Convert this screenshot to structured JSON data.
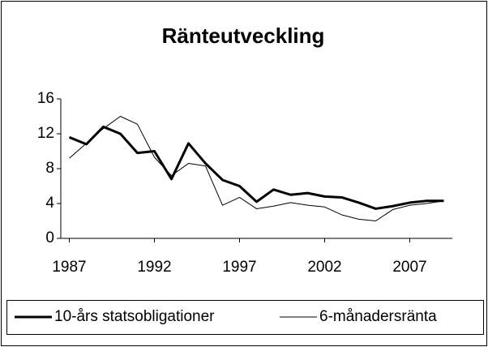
{
  "chart_data": {
    "type": "line",
    "title": "Ränteutveckling",
    "x": [
      1987,
      1988,
      1989,
      1990,
      1991,
      1992,
      1993,
      1994,
      1995,
      1996,
      1997,
      1998,
      1999,
      2000,
      2001,
      2002,
      2003,
      2004,
      2005,
      2006,
      2007,
      2008,
      2009
    ],
    "series": [
      {
        "name": "10-års statsobligationer",
        "color": "#000000",
        "width": 3,
        "values": [
          11.6,
          10.8,
          12.8,
          12.0,
          9.8,
          10.0,
          6.8,
          10.9,
          8.6,
          6.7,
          6.0,
          4.2,
          5.6,
          5.0,
          5.2,
          4.8,
          4.7,
          4.1,
          3.4,
          3.7,
          4.1,
          4.3,
          4.3
        ]
      },
      {
        "name": "6-månadersränta",
        "color": "#000000",
        "width": 1,
        "values": [
          9.2,
          10.9,
          12.6,
          14.0,
          13.1,
          9.3,
          7.2,
          8.6,
          8.3,
          3.8,
          4.7,
          3.4,
          3.7,
          4.1,
          3.8,
          3.6,
          2.7,
          2.2,
          2.0,
          3.3,
          3.8,
          4.0,
          4.3
        ]
      }
    ],
    "xlim": [
      1986.5,
      2009.5
    ],
    "xticks": [
      1987,
      1992,
      1997,
      2002,
      2007
    ],
    "ylim": [
      0,
      16
    ],
    "yticks": [
      0,
      4,
      8,
      12,
      16
    ],
    "grid": false,
    "legend": "bottom"
  }
}
